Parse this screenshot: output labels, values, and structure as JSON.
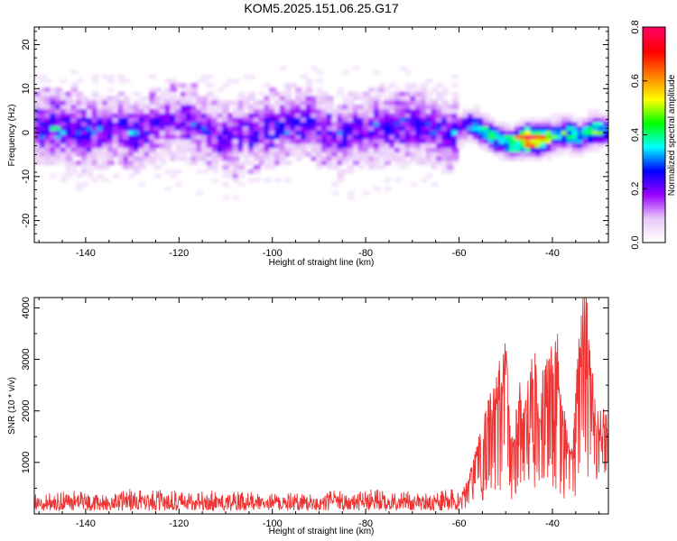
{
  "chart_data": [
    {
      "type": "heatmap",
      "title": "KOM5.2025.151.06.25.G17",
      "xlabel": "Height of straight line (km)",
      "ylabel": "Frequency (Hz)",
      "xlim": [
        -151,
        -28
      ],
      "ylim": [
        -25,
        24
      ],
      "xticks": [
        -140,
        -120,
        -100,
        -80,
        -60,
        -40
      ],
      "yticks": [
        -20,
        -10,
        0,
        10,
        20
      ],
      "grid": false,
      "colorbar": {
        "label": "Normalized spectral amplitude",
        "range": [
          0,
          0.8
        ],
        "ticks": [
          "0.0",
          "0.2",
          "0.4",
          "0.6",
          "0.8"
        ],
        "colormap": [
          "#ffffff",
          "#e8c8f8",
          "#9a00ff",
          "#0000ff",
          "#00ffff",
          "#00ff00",
          "#ffff00",
          "#ff8000",
          "#ff0000",
          "#ff0060"
        ]
      },
      "ridge": [
        {
          "x": -150,
          "y": 1.5,
          "amp": 0.2
        },
        {
          "x": -147,
          "y": 1.5,
          "amp": 0.25
        },
        {
          "x": -143,
          "y": 1.0,
          "amp": 0.18
        },
        {
          "x": -140,
          "y": 0.0,
          "amp": 0.22
        },
        {
          "x": -136,
          "y": 1.0,
          "amp": 0.16
        },
        {
          "x": -133,
          "y": 1.5,
          "amp": 0.15
        },
        {
          "x": -130,
          "y": -0.5,
          "amp": 0.25
        },
        {
          "x": -126,
          "y": 1.0,
          "amp": 0.15
        },
        {
          "x": -122,
          "y": 3.0,
          "amp": 0.14
        },
        {
          "x": -118,
          "y": 2.5,
          "amp": 0.18
        },
        {
          "x": -114,
          "y": 0.5,
          "amp": 0.15
        },
        {
          "x": -110,
          "y": -1.5,
          "amp": 0.16
        },
        {
          "x": -106,
          "y": -0.5,
          "amp": 0.15
        },
        {
          "x": -102,
          "y": 0.5,
          "amp": 0.16
        },
        {
          "x": -98,
          "y": 1.5,
          "amp": 0.18
        },
        {
          "x": -94,
          "y": 2.5,
          "amp": 0.2
        },
        {
          "x": -90,
          "y": 1.0,
          "amp": 0.15
        },
        {
          "x": -86,
          "y": -1.5,
          "amp": 0.2
        },
        {
          "x": -82,
          "y": 0.5,
          "amp": 0.16
        },
        {
          "x": -78,
          "y": 1.0,
          "amp": 0.17
        },
        {
          "x": -74,
          "y": 1.5,
          "amp": 0.2
        },
        {
          "x": -70,
          "y": 2.0,
          "amp": 0.22
        },
        {
          "x": -66,
          "y": 1.0,
          "amp": 0.16
        },
        {
          "x": -62,
          "y": -0.5,
          "amp": 0.18
        },
        {
          "x": -58,
          "y": 2.0,
          "amp": 0.32
        },
        {
          "x": -55,
          "y": 0.5,
          "amp": 0.4
        },
        {
          "x": -52,
          "y": -1.5,
          "amp": 0.42
        },
        {
          "x": -49,
          "y": -2.5,
          "amp": 0.45
        },
        {
          "x": -46,
          "y": -1.5,
          "amp": 0.82
        },
        {
          "x": -43,
          "y": -1.5,
          "amp": 0.85
        },
        {
          "x": -40,
          "y": -1.0,
          "amp": 0.4
        },
        {
          "x": -37,
          "y": 0.0,
          "amp": 0.45
        },
        {
          "x": -34,
          "y": -1.0,
          "amp": 0.4
        },
        {
          "x": -31,
          "y": 0.5,
          "amp": 0.45
        },
        {
          "x": -29,
          "y": 0.5,
          "amp": 0.4
        }
      ]
    },
    {
      "type": "line",
      "xlabel": "Height of straight line (km)",
      "ylabel": "SNR (10 * v/v)",
      "xlim": [
        -151,
        -28
      ],
      "ylim": [
        0,
        4200
      ],
      "xticks": [
        -140,
        -120,
        -100,
        -80,
        -60,
        -40
      ],
      "yticks": [
        1000,
        2000,
        3000,
        4000
      ],
      "grid": false,
      "series": [
        {
          "color": "#ee3333",
          "x": [
            -151,
            -147,
            -143,
            -139,
            -135,
            -131,
            -127,
            -123,
            -119,
            -115,
            -111,
            -107,
            -103,
            -99,
            -95,
            -91,
            -87,
            -83,
            -79,
            -75,
            -71,
            -67,
            -63,
            -60,
            -59,
            -58,
            -57,
            -56,
            -55,
            -54,
            -53,
            -52,
            -51,
            -50,
            -49,
            -48,
            -47,
            -46,
            -45,
            -44,
            -43,
            -42,
            -41,
            -40,
            -39,
            -38,
            -37,
            -36,
            -35,
            -34,
            -33,
            -32.5,
            -32,
            -31,
            -30,
            -29,
            -28
          ],
          "values": [
            200,
            180,
            220,
            170,
            190,
            230,
            200,
            240,
            190,
            220,
            200,
            210,
            190,
            230,
            200,
            180,
            220,
            190,
            230,
            200,
            210,
            190,
            220,
            240,
            500,
            700,
            950,
            1300,
            1700,
            2000,
            2300,
            2450,
            2900,
            3250,
            1500,
            1800,
            2500,
            1800,
            2800,
            3100,
            2150,
            2600,
            2800,
            3000,
            3300,
            2200,
            1600,
            1100,
            2400,
            3500,
            4100,
            4150,
            3200,
            2100,
            1800,
            2000,
            1600
          ]
        }
      ]
    }
  ]
}
